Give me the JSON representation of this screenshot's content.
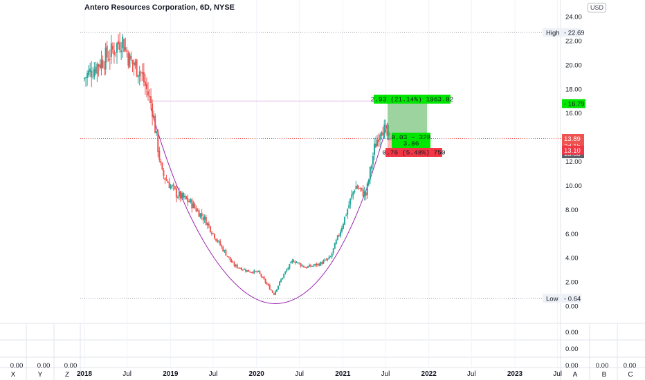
{
  "header": {
    "title": "Antero Resources Corporation, 6D, NYSE",
    "currency": "USD"
  },
  "chart_data": {
    "type": "candlestick",
    "title": "Antero Resources Corporation, 6D, NYSE",
    "currency": "USD",
    "y_ticks": [
      "24.00",
      "22.00",
      "20.00",
      "18.00",
      "16.00",
      "14.00",
      "12.00",
      "10.00",
      "8.00",
      "6.00",
      "4.00",
      "2.00",
      "0.00"
    ],
    "y_tick_values": [
      24,
      22,
      20,
      18,
      16,
      14,
      12,
      10,
      8,
      6,
      4,
      2,
      0
    ],
    "ylim": [
      0,
      24.8
    ],
    "x_ticks": [
      {
        "label": "2018",
        "date": "2018-01-01",
        "bold": true
      },
      {
        "label": "Jul",
        "date": "2018-07-01",
        "bold": false
      },
      {
        "label": "2019",
        "date": "2019-01-01",
        "bold": true
      },
      {
        "label": "Jul",
        "date": "2019-07-01",
        "bold": false
      },
      {
        "label": "2020",
        "date": "2020-01-01",
        "bold": true
      },
      {
        "label": "Jul",
        "date": "2020-07-01",
        "bold": false
      },
      {
        "label": "2021",
        "date": "2021-01-01",
        "bold": true
      },
      {
        "label": "Jul",
        "date": "2021-07-01",
        "bold": false
      },
      {
        "label": "2022",
        "date": "2022-01-01",
        "bold": true
      },
      {
        "label": "Jul",
        "date": "2022-07-01",
        "bold": false
      },
      {
        "label": "2023",
        "date": "2023-01-01",
        "bold": true
      },
      {
        "label": "Jul",
        "date": "2023-07-01",
        "bold": false
      }
    ],
    "price_keypoints": [
      {
        "date": "2018-01-01",
        "price": 18.8
      },
      {
        "date": "2018-03-01",
        "price": 20.0
      },
      {
        "date": "2018-05-01",
        "price": 21.0
      },
      {
        "date": "2018-06-15",
        "price": 22.2
      },
      {
        "date": "2018-07-20",
        "price": 20.3
      },
      {
        "date": "2018-09-01",
        "price": 19.5
      },
      {
        "date": "2018-10-20",
        "price": 16.6
      },
      {
        "date": "2018-12-01",
        "price": 11.0
      },
      {
        "date": "2019-02-01",
        "price": 9.3
      },
      {
        "date": "2019-04-01",
        "price": 8.6
      },
      {
        "date": "2019-06-01",
        "price": 7.2
      },
      {
        "date": "2019-08-01",
        "price": 5.2
      },
      {
        "date": "2019-10-01",
        "price": 3.4
      },
      {
        "date": "2019-12-01",
        "price": 2.9
      },
      {
        "date": "2020-01-15",
        "price": 2.8
      },
      {
        "date": "2020-03-20",
        "price": 1.0
      },
      {
        "date": "2020-05-01",
        "price": 2.6
      },
      {
        "date": "2020-06-10",
        "price": 3.8
      },
      {
        "date": "2020-08-01",
        "price": 3.2
      },
      {
        "date": "2020-10-01",
        "price": 3.5
      },
      {
        "date": "2020-11-15",
        "price": 4.0
      },
      {
        "date": "2021-01-01",
        "price": 6.5
      },
      {
        "date": "2021-03-01",
        "price": 10.0
      },
      {
        "date": "2021-04-15",
        "price": 9.2
      },
      {
        "date": "2021-05-20",
        "price": 13.0
      },
      {
        "date": "2021-06-20",
        "price": 15.0
      },
      {
        "date": "2021-07-20",
        "price": 13.86
      }
    ],
    "high": {
      "label": "High",
      "value": "22.69"
    },
    "low": {
      "label": "Low",
      "value": "0.64"
    },
    "last_price": {
      "value": "13.89",
      "countdown": "2d 1h",
      "value2": "13.86"
    },
    "target_price": "16.79",
    "stop_price": "13.10",
    "pattern": {
      "type": "cup-and-handle",
      "rim_price": 17.0,
      "rim_start": "2018-10-10",
      "rim_end": "2021-07-10",
      "bottom_price": 0.2
    },
    "position": {
      "entry": 13.86,
      "target": 16.79,
      "stop": 13.1,
      "start_date": "2021-07-10",
      "end_date": "2021-12-25",
      "target_label": "2.93 (21.14%) 1963.82",
      "center_label": "0.03 ~ 328",
      "center_label2": "3.86",
      "stop_label": "0.76 (5.48%) 750"
    },
    "oscillators": {
      "row1_value": "0.00",
      "row2_value": "0.00",
      "bottom_values": [
        "0.00",
        "0.00",
        "0.00",
        "0.00",
        "0.00",
        "0.00"
      ],
      "axis_letters": [
        "X",
        "Y",
        "Z",
        "A",
        "B",
        "C"
      ]
    },
    "colors": {
      "up": "#26a69a",
      "down": "#ef5350",
      "cup": "#9c27b0",
      "cup_fill": "#f3e5f5",
      "target": "#00e600",
      "stop": "#f23645",
      "label_bg": "#ef5350"
    }
  }
}
